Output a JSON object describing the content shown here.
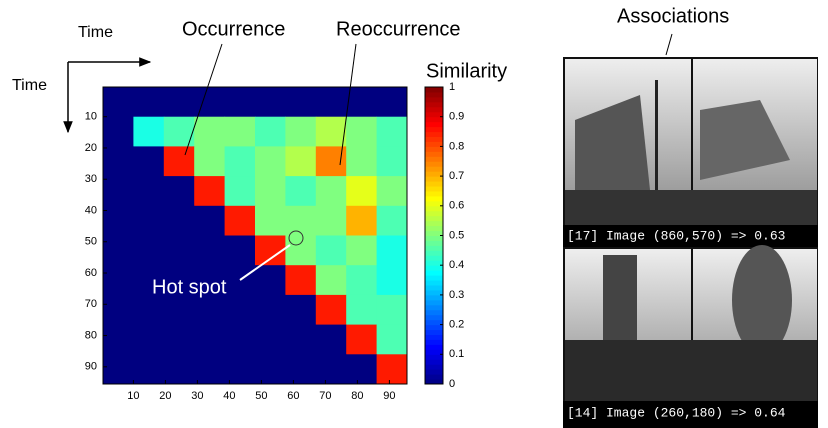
{
  "chart_data": {
    "type": "heatmap",
    "colormap": "jet",
    "bins": [
      0.5,
      10,
      19.5,
      29,
      38.5,
      48,
      57.5,
      67,
      76.5,
      86,
      95.5
    ],
    "z": [
      [
        0,
        0,
        0,
        0,
        0,
        0,
        0,
        0,
        0,
        0
      ],
      [
        0,
        0.4,
        0.45,
        0.5,
        0.5,
        0.45,
        0.5,
        0.55,
        0.5,
        0.45
      ],
      [
        0,
        0,
        0.85,
        0.5,
        0.45,
        0.5,
        0.55,
        0.75,
        0.5,
        0.45
      ],
      [
        0,
        0,
        0,
        0.85,
        0.45,
        0.5,
        0.45,
        0.5,
        0.6,
        0.5
      ],
      [
        0,
        0,
        0,
        0,
        0.85,
        0.5,
        0.5,
        0.5,
        0.7,
        0.45
      ],
      [
        0,
        0,
        0,
        0,
        0,
        0.85,
        0.5,
        0.45,
        0.5,
        0.4
      ],
      [
        0,
        0,
        0,
        0,
        0,
        0,
        0.85,
        0.5,
        0.45,
        0.4
      ],
      [
        0,
        0,
        0,
        0,
        0,
        0,
        0,
        0.85,
        0.45,
        0.45
      ],
      [
        0,
        0,
        0,
        0,
        0,
        0,
        0,
        0,
        0.85,
        0.45
      ],
      [
        0,
        0,
        0,
        0,
        0,
        0,
        0,
        0,
        0,
        0.85
      ]
    ],
    "xlim": [
      0.5,
      95.5
    ],
    "ylim": [
      0.5,
      95.5
    ],
    "xticks": [
      10,
      20,
      30,
      40,
      50,
      60,
      70,
      80,
      90
    ],
    "yticks": [
      10,
      20,
      30,
      40,
      50,
      60,
      70,
      80,
      90
    ],
    "colorbar": {
      "label": "Similarity",
      "lim": [
        0,
        1
      ],
      "ticks": [
        0,
        0.1,
        0.2,
        0.3,
        0.4,
        0.5,
        0.6,
        0.7,
        0.8,
        0.9,
        1
      ]
    },
    "xlabel": "Time",
    "ylabel": "Time",
    "annotations": [
      "Occurrence",
      "Reoccurrence",
      "Hot spot"
    ],
    "associations": {
      "title": "Associations",
      "captions": [
        "[17] Image (860,570) => 0.63",
        "[14] Image (260,180) => 0.64"
      ]
    }
  }
}
